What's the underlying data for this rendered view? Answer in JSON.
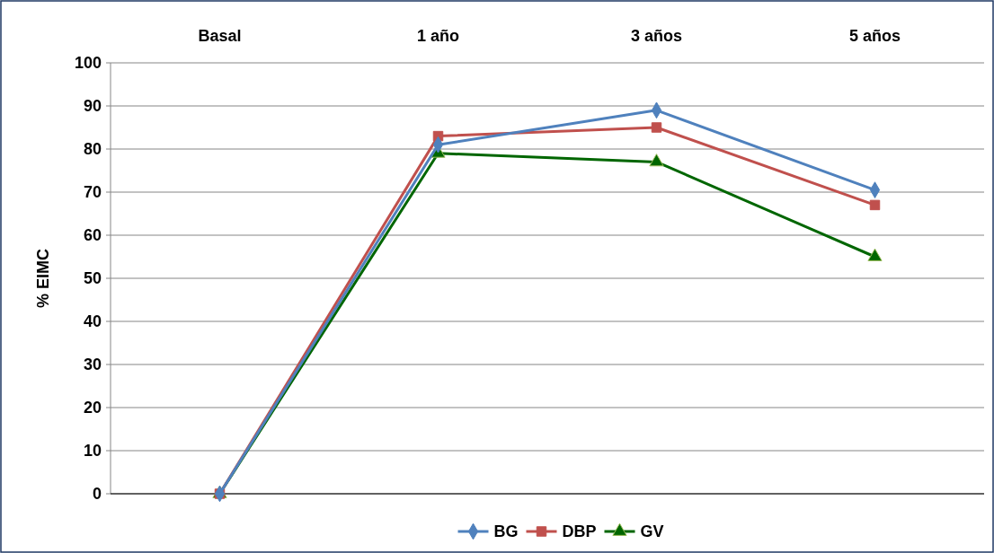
{
  "chart_data": {
    "type": "line",
    "ylabel": "% EIMC",
    "categories": [
      "Basal",
      "1 año",
      "3 años",
      "5 años"
    ],
    "ylim": [
      0,
      100
    ],
    "yticks": [
      0,
      10,
      20,
      30,
      40,
      50,
      60,
      70,
      80,
      90,
      100
    ],
    "grid": "y",
    "legend": "bottom",
    "series": [
      {
        "name": "BG",
        "color": "#4f81bd",
        "marker": "diamond",
        "values": [
          0,
          81,
          89,
          70.5
        ]
      },
      {
        "name": "DBP",
        "color": "#c0504d",
        "marker": "square",
        "values": [
          0,
          83,
          85,
          67
        ]
      },
      {
        "name": "GV",
        "color": "#006600",
        "marker": "triangle",
        "values": [
          0,
          79,
          77,
          55
        ]
      }
    ]
  }
}
